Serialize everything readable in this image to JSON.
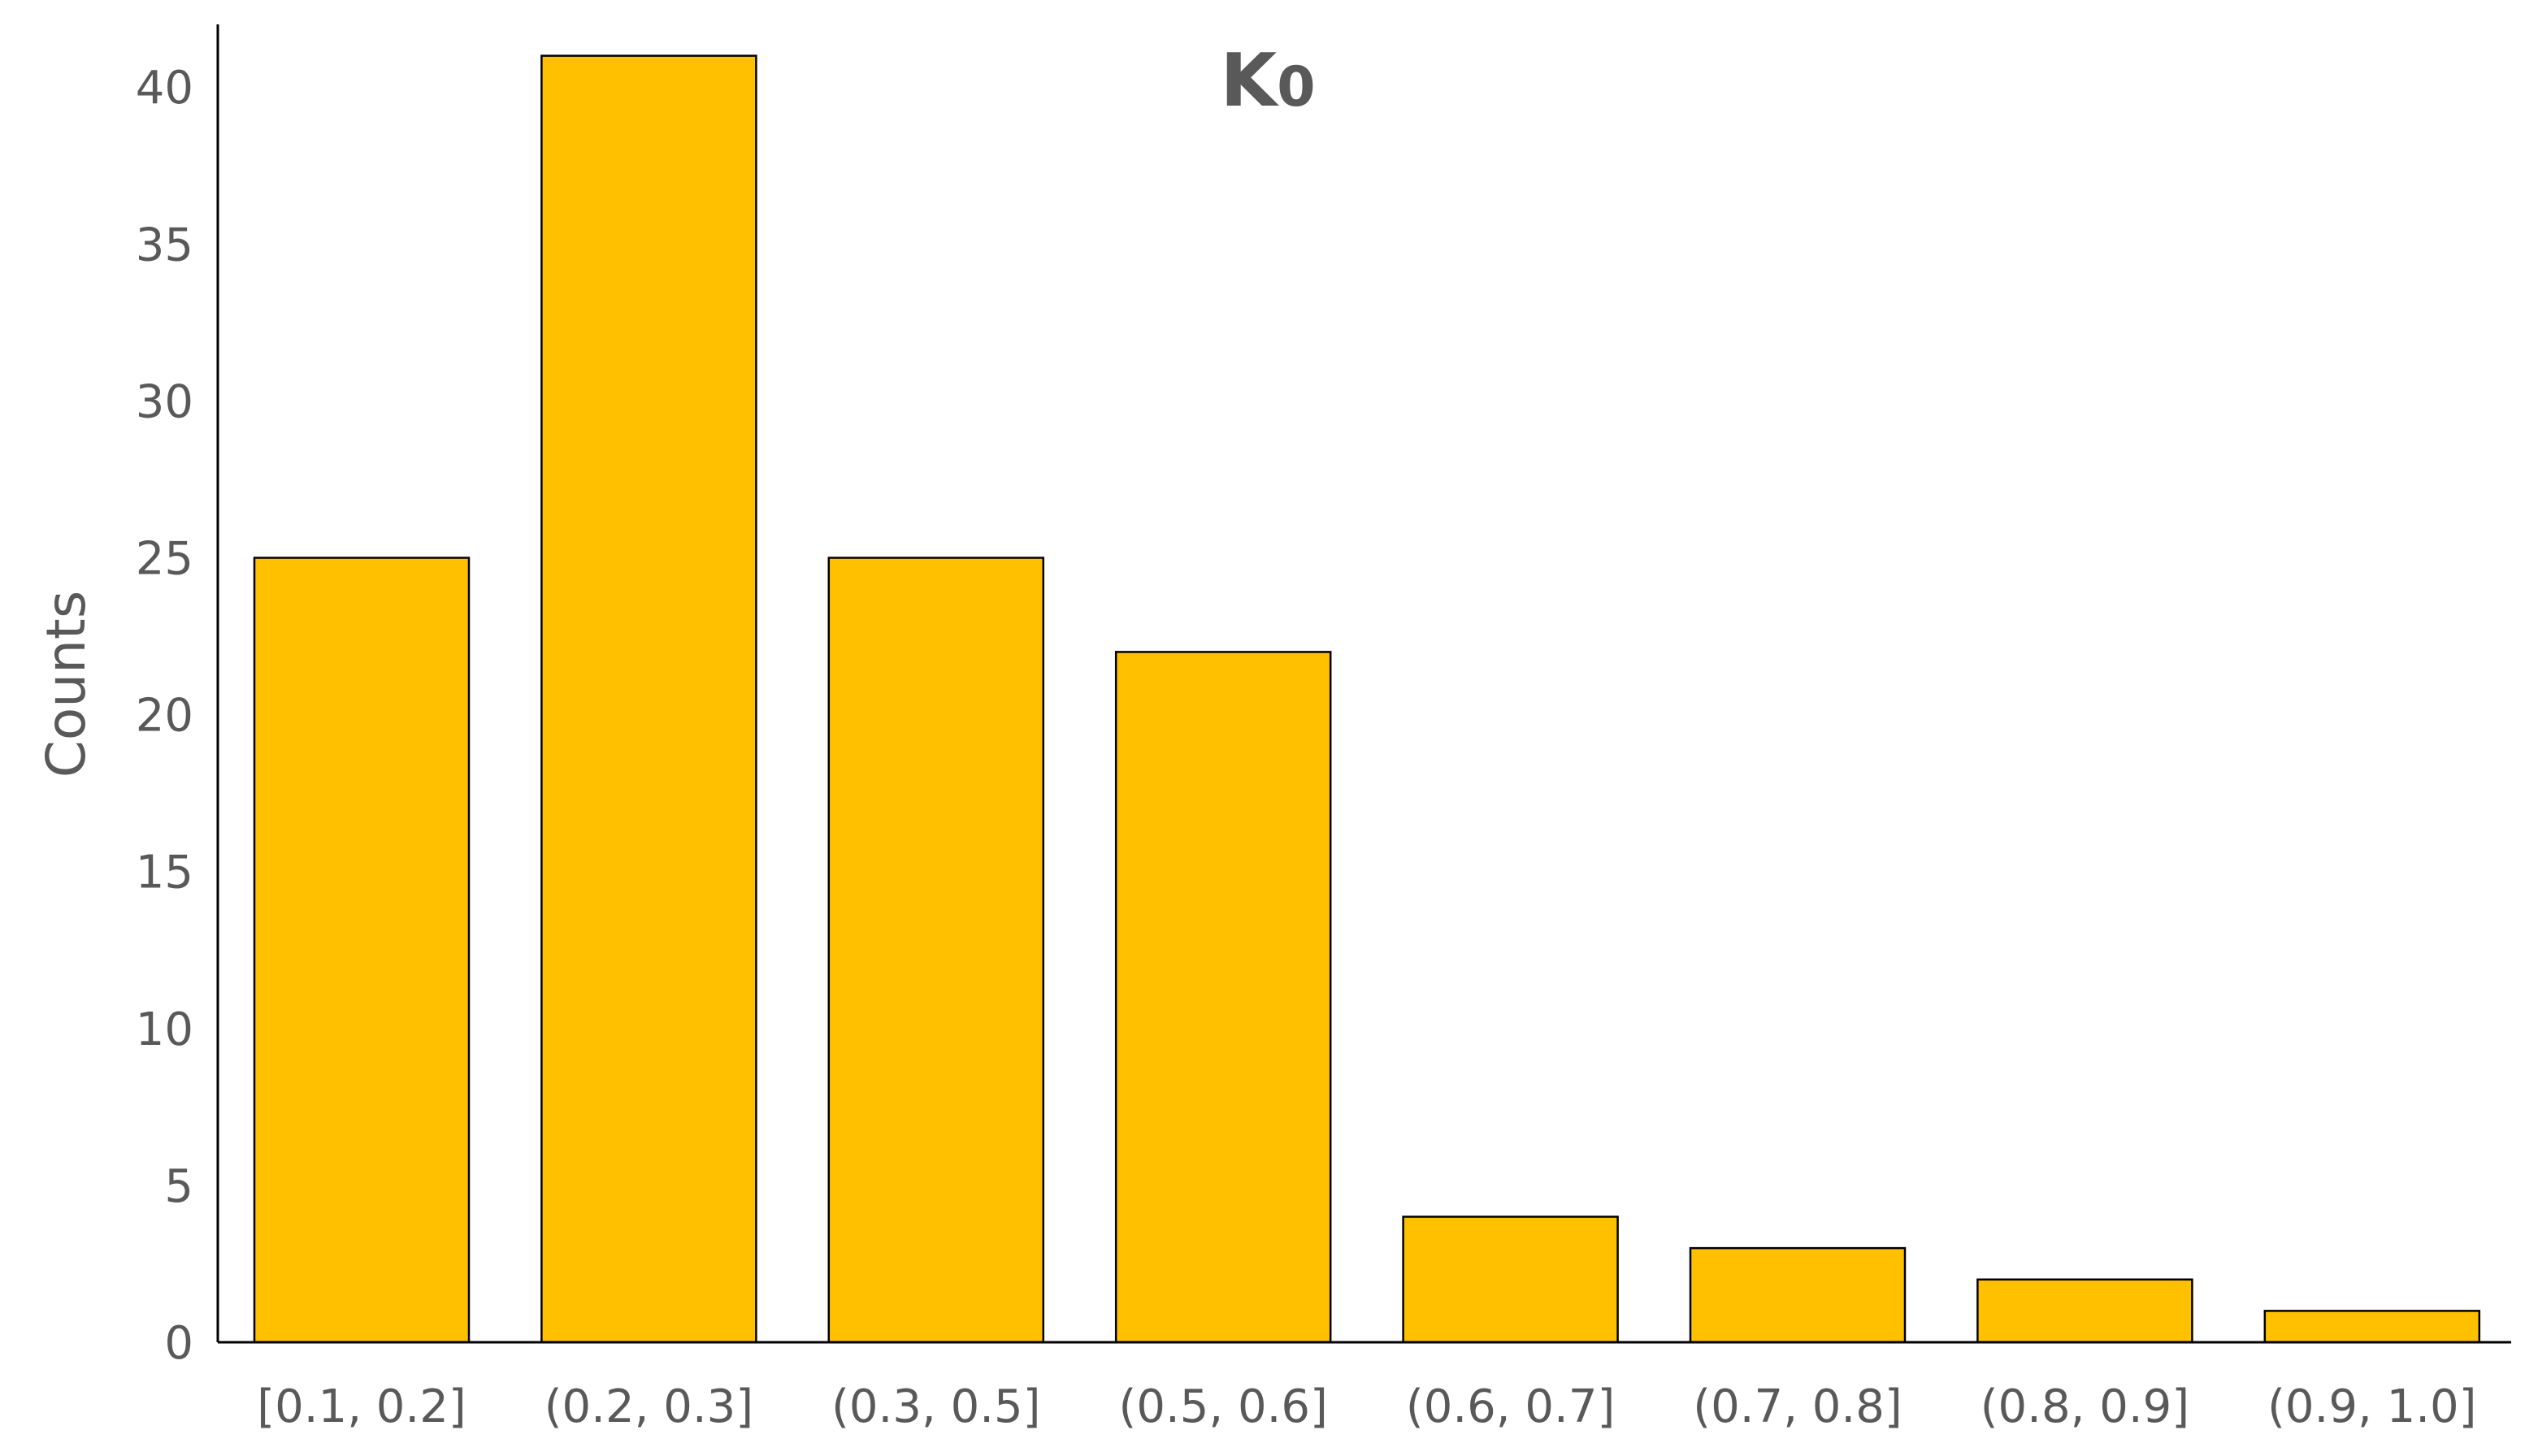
{
  "chart_data": {
    "type": "bar",
    "title": "K",
    "title_subscript": "0",
    "xlabel": "",
    "ylabel": "Counts",
    "categories": [
      "[0.1, 0.2]",
      "(0.2, 0.3]",
      "(0.3, 0.5]",
      "(0.5, 0.6]",
      "(0.6, 0.7]",
      "(0.7, 0.8]",
      "(0.8, 0.9]",
      "(0.9, 1.0]"
    ],
    "values": [
      25,
      41,
      25,
      22,
      4,
      3,
      2,
      1
    ],
    "yticks": [
      "0",
      "5",
      "10",
      "15",
      "20",
      "25",
      "30",
      "35",
      "40"
    ],
    "ylim": [
      0,
      42
    ],
    "bar_color": "#FFC000",
    "grid": false,
    "legend": "none"
  }
}
